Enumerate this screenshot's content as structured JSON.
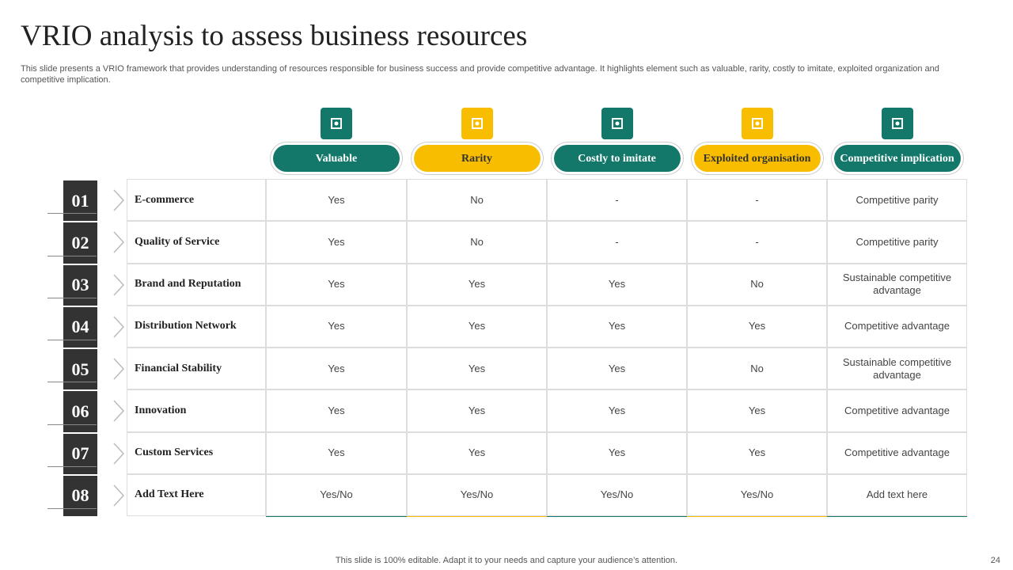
{
  "header": {
    "title": "VRIO analysis to assess business resources",
    "subtitle": "This slide presents a VRIO framework that provides understanding of resources responsible for business success and provide competitive advantage. It highlights element such as valuable, rarity, costly to imitate, exploited organization and competitive implication."
  },
  "table": {
    "columns": [
      "Valuable",
      "Rarity",
      "Costly to imitate",
      "Exploited organisation",
      "Competitive implication"
    ],
    "rows": [
      {
        "number": "01",
        "label": "E-commerce",
        "cells": [
          "Yes",
          "No",
          "-",
          "-",
          "Competitive  parity"
        ]
      },
      {
        "number": "02",
        "label": "Quality of Service",
        "cells": [
          "Yes",
          "No",
          "-",
          "-",
          "Competitive  parity"
        ]
      },
      {
        "number": "03",
        "label": "Brand and Reputation",
        "cells": [
          "Yes",
          "Yes",
          "Yes",
          "No",
          "Sustainable competitive  advantage"
        ]
      },
      {
        "number": "04",
        "label": "Distribution Network",
        "cells": [
          "Yes",
          "Yes",
          "Yes",
          "Yes",
          "Competitive  advantage"
        ]
      },
      {
        "number": "05",
        "label": "Financial Stability",
        "cells": [
          "Yes",
          "Yes",
          "Yes",
          "No",
          "Sustainable competitive  advantage"
        ]
      },
      {
        "number": "06",
        "label": "Innovation",
        "cells": [
          "Yes",
          "Yes",
          "Yes",
          "Yes",
          "Competitive  advantage"
        ]
      },
      {
        "number": "07",
        "label": "Custom Services",
        "cells": [
          "Yes",
          "Yes",
          "Yes",
          "Yes",
          "Competitive  advantage"
        ]
      },
      {
        "number": "08",
        "label": "Add Text Here",
        "cells": [
          "Yes/No",
          "Yes/No",
          "Yes/No",
          "Yes/No",
          "Add text here"
        ]
      }
    ]
  },
  "footer": {
    "note": "This slide is 100% editable. Adapt it to your needs and capture your audience’s attention.",
    "page": "24"
  }
}
